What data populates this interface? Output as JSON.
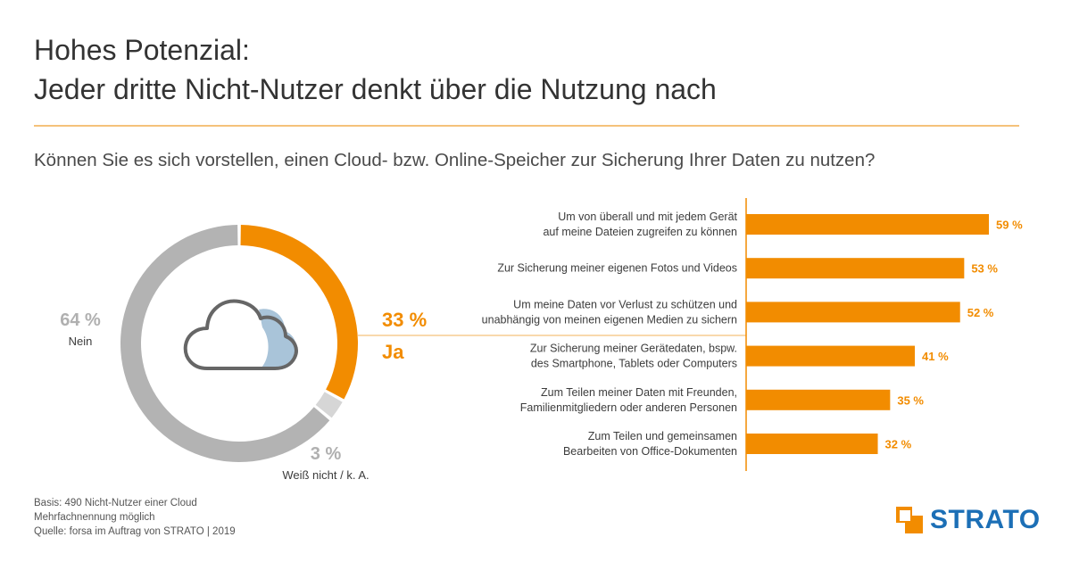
{
  "title": {
    "line1": "Hohes Potenzial:",
    "line2": "Jeder dritte Nicht-Nutzer denkt über die Nutzung nach"
  },
  "question": "Können Sie es sich vorstellen, einen Cloud- bzw. Online-Speicher zur Sicherung Ihrer Daten zu nutzen?",
  "colors": {
    "orange": "#f28c00",
    "grey": "#b3b3b3",
    "light_grey": "#d6d6d6",
    "cloud_blue": "#a9c4d9",
    "text": "#3c3c3c",
    "rule": "#f5c27a",
    "brand_blue": "#1c6fb6"
  },
  "icons": {
    "center": "cloud-icon"
  },
  "chart_data": [
    {
      "type": "pie",
      "slices": [
        {
          "label": "Ja",
          "value": 33,
          "display": "33 %",
          "color": "#f28c00"
        },
        {
          "label": "Weiß nicht / k. A.",
          "value": 3,
          "display": "3 %",
          "color": "#d6d6d6"
        },
        {
          "label": "Nein",
          "value": 64,
          "display": "64 %",
          "color": "#b3b3b3"
        }
      ]
    },
    {
      "type": "bar",
      "orientation": "horizontal",
      "categories": [
        [
          "Um von überall und mit jedem Gerät",
          "auf meine Dateien zugreifen zu können"
        ],
        [
          "Zur Sicherung meiner eigenen Fotos und Videos"
        ],
        [
          "Um meine Daten vor Verlust zu schützen und",
          "unabhängig von meinen eigenen Medien zu sichern"
        ],
        [
          "Zur Sicherung meiner Gerätedaten, bspw.",
          "des Smartphone, Tablets oder Computers"
        ],
        [
          "Zum Teilen meiner Daten mit Freunden,",
          "Familienmitgliedern oder anderen Personen"
        ],
        [
          "Zum Teilen und gemeinsamen",
          "Bearbeiten von Office-Dokumenten"
        ]
      ],
      "values": [
        59,
        53,
        52,
        41,
        35,
        32
      ],
      "value_labels": [
        "59 %",
        "53 %",
        "52 %",
        "41 %",
        "35 %",
        "32 %"
      ],
      "color": "#f28c00"
    }
  ],
  "footer": {
    "line1": "Basis: 490 Nicht-Nutzer einer Cloud",
    "line2": "Mehrfachnennung möglich",
    "line3": "Quelle: forsa im Auftrag von STRATO | 2019"
  },
  "logo": {
    "text": "STRATO"
  }
}
